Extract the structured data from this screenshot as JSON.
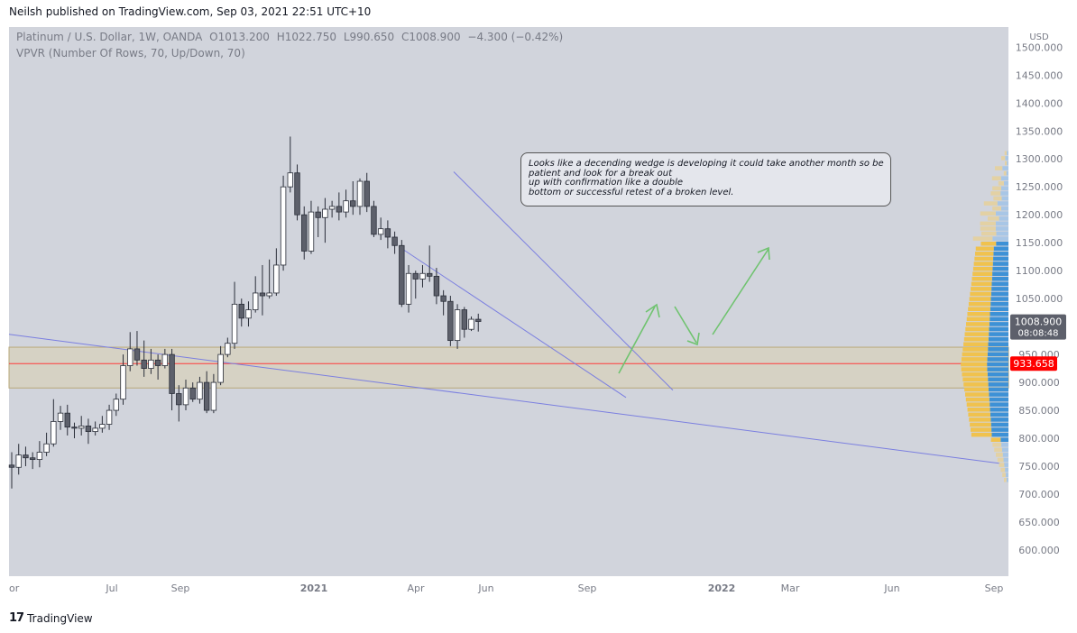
{
  "header": {
    "published": "Neilsh published on TradingView.com, Sep 03, 2021 22:51 UTC+10"
  },
  "legend": {
    "symbol": "Platinum / U.S. Dollar, 1W, OANDA",
    "open": "O1013.200",
    "high": "H1022.750",
    "low": "L990.650",
    "close": "C1008.900",
    "change": "−4.300 (−0.42%)",
    "indicator": "VPVR (Number Of Rows, 70, Up/Down, 70)"
  },
  "annotation": {
    "lines": [
      "Looks like a decending wedge is developing it could take another month so be",
      "patient and look for a break out",
      "up with confirmation like a double",
      "bottom or successful retest of a broken level."
    ]
  },
  "footer": {
    "logo_mark": "17",
    "brand": "TradingView"
  },
  "colors": {
    "up_candle": "#ffffff",
    "down_candle": "#5d606b",
    "zone_fill": "#d6d2c4",
    "vp_up": "#f0c24e",
    "vp_down": "#3d91d6",
    "trendline": "#7b7fe0",
    "arrow": "#6fc36f",
    "price_line": "#ff3b3b"
  },
  "chart_data": {
    "type": "candlestick",
    "currency": "USD",
    "y_ticks": [
      "1500.000",
      "1450.000",
      "1400.000",
      "1350.000",
      "1300.000",
      "1250.000",
      "1200.000",
      "1150.000",
      "1100.000",
      "1050.000",
      "1000.000",
      "950.000",
      "900.000",
      "850.000",
      "800.000",
      "750.000",
      "700.000",
      "650.000",
      "600.000"
    ],
    "x_ticks": [
      "Jul",
      "Sep",
      "2021",
      "Apr",
      "Jun",
      "Sep",
      "2022",
      "Mar",
      "Jun",
      "Sep"
    ],
    "x_tick_partial": "or",
    "ylim": [
      570,
      1510
    ],
    "current_price": {
      "value": 1008.9,
      "label": "1008.900",
      "countdown": "08:08:48"
    },
    "red_line": {
      "value": 933.658,
      "label": "933.658"
    },
    "zone": [
      890,
      963
    ],
    "candles": [
      [
        0,
        752,
        748,
        775,
        710
      ],
      [
        1,
        748,
        770,
        790,
        735
      ],
      [
        2,
        770,
        765,
        785,
        750
      ],
      [
        3,
        765,
        762,
        775,
        745
      ],
      [
        4,
        762,
        775,
        795,
        748
      ],
      [
        5,
        775,
        790,
        810,
        768
      ],
      [
        6,
        790,
        830,
        870,
        785
      ],
      [
        7,
        830,
        845,
        858,
        815
      ],
      [
        8,
        845,
        820,
        860,
        805
      ],
      [
        9,
        820,
        818,
        828,
        800
      ],
      [
        10,
        818,
        822,
        840,
        805
      ],
      [
        11,
        822,
        812,
        835,
        790
      ],
      [
        12,
        812,
        818,
        830,
        805
      ],
      [
        13,
        818,
        825,
        840,
        810
      ],
      [
        14,
        825,
        850,
        860,
        815
      ],
      [
        15,
        850,
        870,
        880,
        840
      ],
      [
        16,
        870,
        930,
        950,
        860
      ],
      [
        17,
        930,
        960,
        990,
        920
      ],
      [
        18,
        960,
        940,
        992,
        930
      ],
      [
        19,
        940,
        925,
        975,
        910
      ],
      [
        20,
        925,
        940,
        960,
        915
      ],
      [
        21,
        940,
        930,
        950,
        905
      ],
      [
        22,
        930,
        950,
        960,
        925
      ],
      [
        23,
        950,
        880,
        960,
        850
      ],
      [
        24,
        880,
        860,
        895,
        830
      ],
      [
        25,
        860,
        890,
        905,
        850
      ],
      [
        26,
        890,
        870,
        900,
        865
      ],
      [
        27,
        870,
        900,
        910,
        862
      ],
      [
        28,
        900,
        850,
        920,
        845
      ],
      [
        29,
        850,
        900,
        915,
        845
      ],
      [
        30,
        900,
        950,
        965,
        895
      ],
      [
        31,
        950,
        970,
        980,
        945
      ],
      [
        32,
        970,
        1040,
        1080,
        960
      ],
      [
        33,
        1040,
        1015,
        1050,
        1000
      ],
      [
        34,
        1015,
        1030,
        1045,
        1000
      ],
      [
        35,
        1030,
        1060,
        1090,
        1025
      ],
      [
        36,
        1060,
        1055,
        1110,
        1020
      ],
      [
        37,
        1055,
        1060,
        1120,
        1050
      ],
      [
        38,
        1060,
        1110,
        1140,
        1055
      ],
      [
        39,
        1110,
        1250,
        1270,
        1100
      ],
      [
        40,
        1250,
        1275,
        1340,
        1240
      ],
      [
        41,
        1275,
        1200,
        1290,
        1190
      ],
      [
        42,
        1200,
        1135,
        1215,
        1120
      ],
      [
        43,
        1135,
        1205,
        1225,
        1130
      ],
      [
        44,
        1205,
        1195,
        1215,
        1160
      ],
      [
        45,
        1195,
        1210,
        1230,
        1150
      ],
      [
        46,
        1210,
        1215,
        1225,
        1195
      ],
      [
        47,
        1215,
        1205,
        1240,
        1190
      ],
      [
        48,
        1205,
        1225,
        1245,
        1195
      ],
      [
        49,
        1225,
        1215,
        1260,
        1200
      ],
      [
        50,
        1215,
        1260,
        1265,
        1200
      ],
      [
        51,
        1260,
        1215,
        1275,
        1205
      ],
      [
        52,
        1215,
        1165,
        1225,
        1160
      ],
      [
        53,
        1165,
        1175,
        1195,
        1155
      ],
      [
        54,
        1175,
        1160,
        1190,
        1140
      ],
      [
        55,
        1160,
        1145,
        1170,
        1130
      ],
      [
        56,
        1145,
        1040,
        1155,
        1035
      ],
      [
        57,
        1040,
        1095,
        1110,
        1025
      ],
      [
        58,
        1095,
        1085,
        1100,
        1050
      ],
      [
        59,
        1085,
        1095,
        1110,
        1070
      ],
      [
        60,
        1095,
        1090,
        1145,
        1080
      ],
      [
        61,
        1090,
        1055,
        1105,
        1040
      ],
      [
        62,
        1055,
        1045,
        1065,
        1020
      ],
      [
        63,
        1045,
        975,
        1055,
        965
      ],
      [
        64,
        975,
        1030,
        1040,
        960
      ],
      [
        65,
        1030,
        995,
        1035,
        980
      ],
      [
        66,
        995,
        1013,
        1018,
        992
      ],
      [
        67,
        1013,
        1009,
        1023,
        991
      ]
    ],
    "volume_profile_note": "VPVR up/down histogram on right edge"
  }
}
